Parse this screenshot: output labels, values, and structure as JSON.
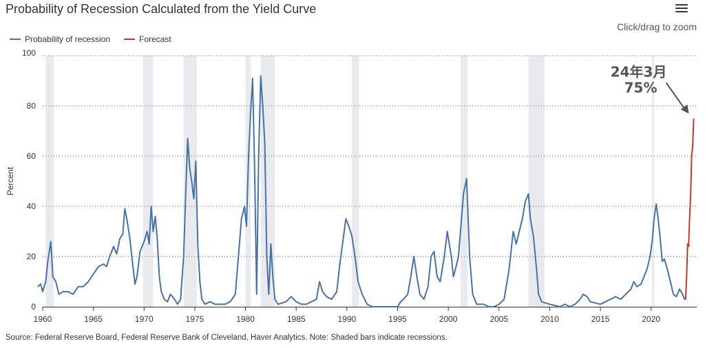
{
  "header": {
    "title": "Probability of Recession Calculated from the Yield Curve",
    "zoom_hint": "Click/drag to zoom",
    "menu_icon": "hamburger-menu-icon"
  },
  "legend": [
    {
      "label": "Probability of recession",
      "color": "#4572a7"
    },
    {
      "label": "Forecast",
      "color": "#c0392b"
    }
  ],
  "footer": {
    "source": "Source: Federal Reserve Board, Federal Reserve Bank of Cleveland, Haver Analytics. Note: Shaded bars indicate recessions."
  },
  "chart_data": {
    "type": "line",
    "title": "Probability of Recession Calculated from the Yield Curve",
    "xlabel": "",
    "ylabel": "Percent",
    "xlim": [
      1960,
      2024.5
    ],
    "ylim": [
      0,
      100
    ],
    "x_ticks": [
      1960,
      1965,
      1970,
      1975,
      1980,
      1985,
      1990,
      1995,
      2000,
      2005,
      2010,
      2015,
      2020
    ],
    "y_ticks": [
      0,
      20,
      40,
      60,
      80,
      100
    ],
    "grid": "horizontal dotted",
    "legend_position": "top-left",
    "recessions": [
      [
        1960.3,
        1961.1
      ],
      [
        1969.9,
        1970.9
      ],
      [
        1973.9,
        1975.2
      ],
      [
        1980.0,
        1980.5
      ],
      [
        1981.5,
        1982.9
      ],
      [
        1990.5,
        1991.2
      ],
      [
        2001.2,
        2001.9
      ],
      [
        2007.9,
        2009.5
      ],
      [
        2020.1,
        2020.3
      ]
    ],
    "series": [
      {
        "name": "Probability of recession",
        "color": "#4572a7",
        "points": [
          [
            1959.5,
            8
          ],
          [
            1959.8,
            9
          ],
          [
            1960.0,
            6
          ],
          [
            1960.3,
            10
          ],
          [
            1960.5,
            18
          ],
          [
            1960.8,
            26
          ],
          [
            1961.0,
            12
          ],
          [
            1961.3,
            10
          ],
          [
            1961.6,
            5
          ],
          [
            1962.0,
            6
          ],
          [
            1962.5,
            6
          ],
          [
            1963.0,
            5
          ],
          [
            1963.5,
            8
          ],
          [
            1964.0,
            8
          ],
          [
            1964.5,
            10
          ],
          [
            1965.0,
            13
          ],
          [
            1965.5,
            16
          ],
          [
            1966.0,
            17
          ],
          [
            1966.3,
            16
          ],
          [
            1966.6,
            20
          ],
          [
            1967.0,
            24
          ],
          [
            1967.3,
            21
          ],
          [
            1967.6,
            27
          ],
          [
            1967.9,
            29
          ],
          [
            1968.1,
            39
          ],
          [
            1968.3,
            35
          ],
          [
            1968.6,
            27
          ],
          [
            1968.9,
            16
          ],
          [
            1969.1,
            9
          ],
          [
            1969.3,
            12
          ],
          [
            1969.6,
            22
          ],
          [
            1970.0,
            26
          ],
          [
            1970.3,
            30
          ],
          [
            1970.5,
            25
          ],
          [
            1970.7,
            40
          ],
          [
            1970.9,
            30
          ],
          [
            1971.1,
            36
          ],
          [
            1971.3,
            27
          ],
          [
            1971.5,
            12
          ],
          [
            1971.7,
            6
          ],
          [
            1972.0,
            3
          ],
          [
            1972.3,
            2
          ],
          [
            1972.6,
            5
          ],
          [
            1973.0,
            3
          ],
          [
            1973.3,
            1
          ],
          [
            1973.6,
            3
          ],
          [
            1973.9,
            20
          ],
          [
            1974.1,
            45
          ],
          [
            1974.3,
            67
          ],
          [
            1974.5,
            55
          ],
          [
            1974.7,
            50
          ],
          [
            1974.9,
            43
          ],
          [
            1975.1,
            58
          ],
          [
            1975.3,
            25
          ],
          [
            1975.5,
            10
          ],
          [
            1975.7,
            3
          ],
          [
            1976.0,
            1
          ],
          [
            1976.5,
            2
          ],
          [
            1977.0,
            1
          ],
          [
            1977.5,
            1
          ],
          [
            1978.0,
            1
          ],
          [
            1978.5,
            2
          ],
          [
            1979.0,
            5
          ],
          [
            1979.3,
            20
          ],
          [
            1979.6,
            35
          ],
          [
            1979.9,
            40
          ],
          [
            1980.1,
            32
          ],
          [
            1980.3,
            60
          ],
          [
            1980.5,
            77
          ],
          [
            1980.7,
            91
          ],
          [
            1980.9,
            55
          ],
          [
            1981.1,
            5
          ],
          [
            1981.3,
            60
          ],
          [
            1981.5,
            92
          ],
          [
            1981.7,
            80
          ],
          [
            1981.9,
            65
          ],
          [
            1982.1,
            20
          ],
          [
            1982.3,
            5
          ],
          [
            1982.5,
            25
          ],
          [
            1982.7,
            12
          ],
          [
            1982.9,
            3
          ],
          [
            1983.2,
            1
          ],
          [
            1984.0,
            2
          ],
          [
            1984.5,
            4
          ],
          [
            1985.0,
            2
          ],
          [
            1985.5,
            1
          ],
          [
            1986.0,
            1
          ],
          [
            1986.5,
            2
          ],
          [
            1987.0,
            3
          ],
          [
            1987.3,
            10
          ],
          [
            1987.6,
            6
          ],
          [
            1988.0,
            4
          ],
          [
            1988.5,
            3
          ],
          [
            1989.0,
            6
          ],
          [
            1989.3,
            17
          ],
          [
            1989.6,
            26
          ],
          [
            1989.9,
            35
          ],
          [
            1990.2,
            32
          ],
          [
            1990.5,
            28
          ],
          [
            1990.8,
            20
          ],
          [
            1991.1,
            10
          ],
          [
            1991.5,
            5
          ],
          [
            1992.0,
            1
          ],
          [
            1992.5,
            0
          ],
          [
            1993.0,
            0
          ],
          [
            1994.0,
            0
          ],
          [
            1995.0,
            0
          ],
          [
            1995.3,
            2
          ],
          [
            1995.6,
            3
          ],
          [
            1996.0,
            5
          ],
          [
            1996.3,
            12
          ],
          [
            1996.6,
            20
          ],
          [
            1996.9,
            12
          ],
          [
            1997.2,
            5
          ],
          [
            1997.6,
            3
          ],
          [
            1998.0,
            8
          ],
          [
            1998.3,
            20
          ],
          [
            1998.6,
            22
          ],
          [
            1998.9,
            12
          ],
          [
            1999.2,
            10
          ],
          [
            1999.6,
            20
          ],
          [
            1999.9,
            30
          ],
          [
            2000.1,
            25
          ],
          [
            2000.3,
            20
          ],
          [
            2000.5,
            12
          ],
          [
            2000.7,
            15
          ],
          [
            2001.0,
            20
          ],
          [
            2001.3,
            35
          ],
          [
            2001.5,
            45
          ],
          [
            2001.8,
            51
          ],
          [
            2002.1,
            20
          ],
          [
            2002.4,
            5
          ],
          [
            2002.8,
            1
          ],
          [
            2003.5,
            1
          ],
          [
            2004.0,
            0
          ],
          [
            2004.5,
            0
          ],
          [
            2005.0,
            1
          ],
          [
            2005.5,
            3
          ],
          [
            2006.0,
            15
          ],
          [
            2006.4,
            30
          ],
          [
            2006.7,
            25
          ],
          [
            2007.0,
            30
          ],
          [
            2007.3,
            35
          ],
          [
            2007.6,
            42
          ],
          [
            2007.9,
            45
          ],
          [
            2008.1,
            35
          ],
          [
            2008.4,
            28
          ],
          [
            2008.7,
            15
          ],
          [
            2008.9,
            5
          ],
          [
            2009.2,
            2
          ],
          [
            2010.0,
            1
          ],
          [
            2011.0,
            0
          ],
          [
            2011.5,
            1
          ],
          [
            2012.0,
            0
          ],
          [
            2012.5,
            1
          ],
          [
            2013.0,
            3
          ],
          [
            2013.3,
            5
          ],
          [
            2013.7,
            4
          ],
          [
            2014.0,
            2
          ],
          [
            2015.0,
            1
          ],
          [
            2015.5,
            2
          ],
          [
            2016.0,
            3
          ],
          [
            2016.5,
            4
          ],
          [
            2017.0,
            3
          ],
          [
            2017.5,
            5
          ],
          [
            2018.0,
            7
          ],
          [
            2018.3,
            10
          ],
          [
            2018.6,
            8
          ],
          [
            2019.0,
            9
          ],
          [
            2019.3,
            12
          ],
          [
            2019.6,
            15
          ],
          [
            2019.9,
            20
          ],
          [
            2020.1,
            26
          ],
          [
            2020.3,
            35
          ],
          [
            2020.5,
            41
          ],
          [
            2020.7,
            35
          ],
          [
            2020.9,
            27
          ],
          [
            2021.1,
            18
          ],
          [
            2021.3,
            19
          ],
          [
            2021.6,
            15
          ],
          [
            2021.9,
            10
          ],
          [
            2022.2,
            5
          ],
          [
            2022.5,
            4
          ],
          [
            2022.8,
            7
          ],
          [
            2023.1,
            5
          ],
          [
            2023.3,
            3
          ]
        ]
      },
      {
        "name": "Forecast",
        "color": "#c0392b",
        "points": [
          [
            2023.3,
            3
          ],
          [
            2023.4,
            3
          ],
          [
            2023.5,
            12
          ],
          [
            2023.6,
            25
          ],
          [
            2023.7,
            24
          ],
          [
            2023.8,
            36
          ],
          [
            2023.9,
            45
          ],
          [
            2024.0,
            60
          ],
          [
            2024.1,
            64
          ],
          [
            2024.2,
            75
          ]
        ]
      }
    ],
    "annotation": {
      "line1": "24年3月",
      "line2": "75%",
      "x": 2024.2,
      "y": 75
    }
  }
}
